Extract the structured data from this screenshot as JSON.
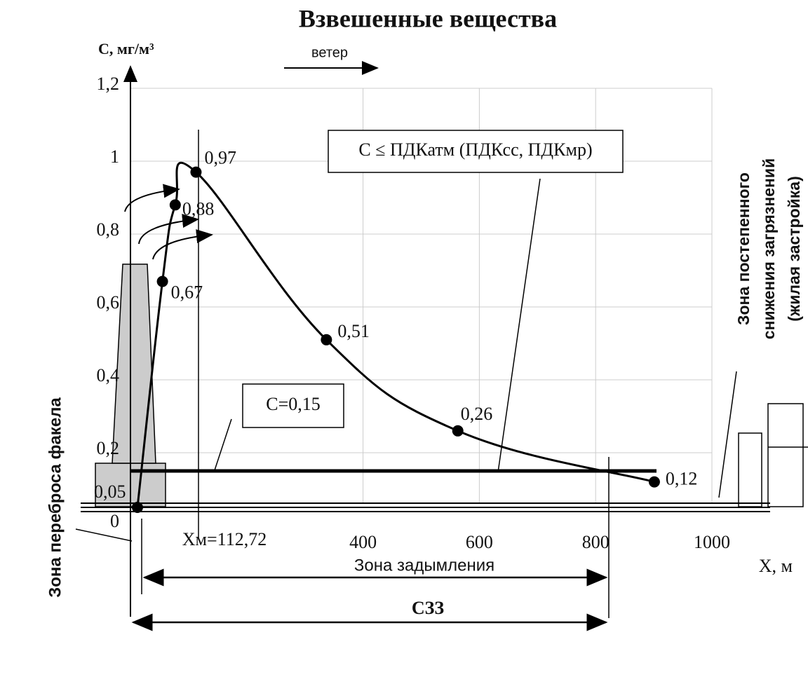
{
  "chart_data": {
    "type": "line",
    "title": "Взвешенные вещества",
    "y_label": "С, мг/м³",
    "x_label": "X, м",
    "wind_label": "ветер",
    "x": [
      12,
      55,
      77,
      112.72,
      337,
      563,
      901
    ],
    "series": [
      {
        "color": "#000000",
        "values": [
          0.05,
          0.67,
          0.88,
          0.97,
          0.51,
          0.26,
          0.12
        ],
        "value_labels": [
          "0,05",
          "0,67",
          "0,88",
          "0,97",
          "0,51",
          "0,26",
          "0,12"
        ]
      }
    ],
    "xlim": [
      0,
      1000
    ],
    "ylim": [
      0,
      1.2
    ],
    "xticks": [
      400,
      600,
      800,
      1000
    ],
    "yticks": [
      0,
      {
        "value": 0.2,
        "label": "0,2"
      },
      {
        "value": 0.4,
        "label": "0,4"
      },
      {
        "value": 0.6,
        "label": "0,6"
      },
      {
        "value": 0.8,
        "label": "0,8"
      },
      1,
      {
        "value": 1.2,
        "label": "1,2"
      }
    ],
    "grid": true,
    "xm_label": "Xм=112,72",
    "threshold": {
      "value": 0.15,
      "label": "С=0,15"
    },
    "limit_label": "C ≤ ПДКатм (ПДКсс, ПДКмр)",
    "zones": {
      "smoke": "Зона задымления",
      "szz": "СЗЗ",
      "plume": "Зона переброса факела",
      "reduction": [
        "Зона постепенного",
        "снижения загрязнений",
        "(жилая застройка)"
      ]
    }
  }
}
